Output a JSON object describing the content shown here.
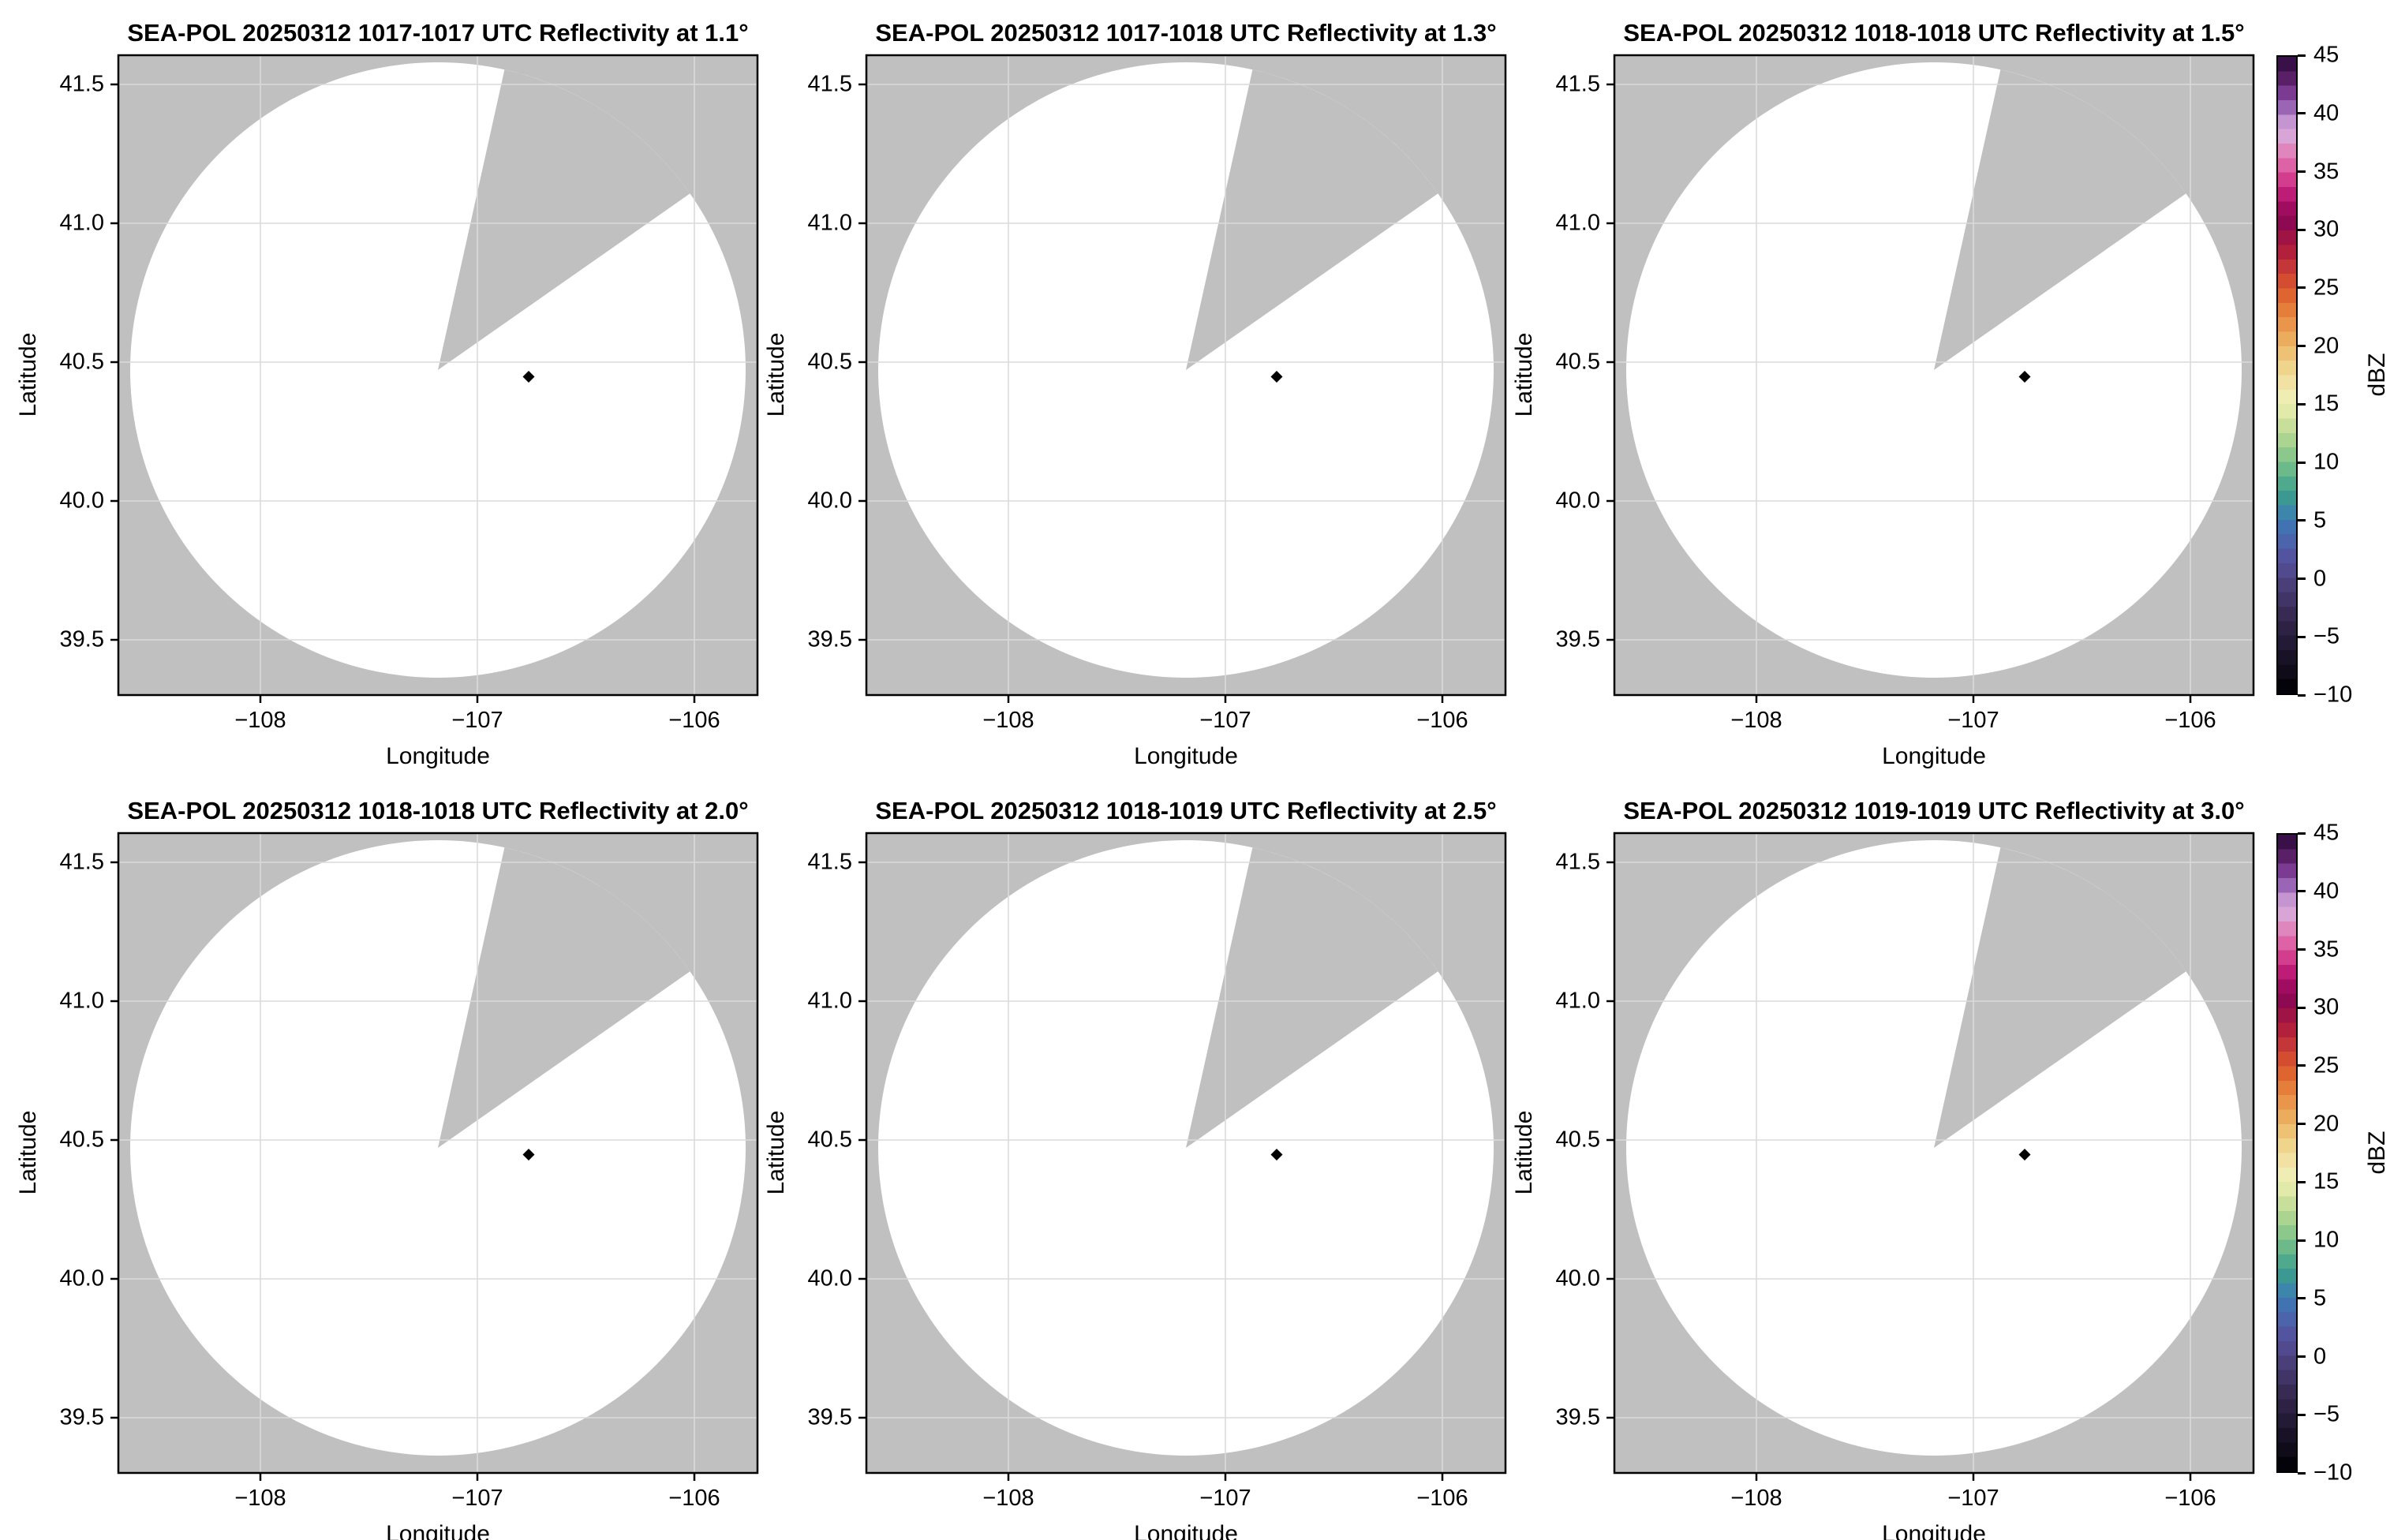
{
  "figure": {
    "xlabel": "Longitude",
    "ylabel": "Latitude",
    "xticks": [
      "−108",
      "−107",
      "−106"
    ],
    "yticks": [
      "41.5",
      "41.0",
      "40.5",
      "40.0",
      "39.5"
    ],
    "background_gray": "#c0c0c0",
    "coverage_fill": "#ffffff",
    "gridline_color": "#dadada"
  },
  "panels": [
    {
      "title": "SEA-POL 20250312 1017-1017 UTC Reflectivity at 1.1°"
    },
    {
      "title": "SEA-POL 20250312 1017-1018 UTC Reflectivity at 1.3°"
    },
    {
      "title": "SEA-POL 20250312 1018-1018 UTC Reflectivity at 1.5°"
    },
    {
      "title": "SEA-POL 20250312 1018-1018 UTC Reflectivity at 2.0°"
    },
    {
      "title": "SEA-POL 20250312 1018-1019 UTC Reflectivity at 2.5°"
    },
    {
      "title": "SEA-POL 20250312 1019-1019 UTC Reflectivity at 3.0°"
    }
  ],
  "colorbar": {
    "label": "dBZ",
    "ticks": [
      "45",
      "40",
      "35",
      "30",
      "25",
      "20",
      "15",
      "10",
      "5",
      "0",
      "−5",
      "−10"
    ],
    "vmin": -10,
    "vmax": 45,
    "colors": [
      "#3a1048",
      "#5a2067",
      "#7b3b93",
      "#9b65b5",
      "#c495d0",
      "#d8a5d6",
      "#df87bd",
      "#dd63a6",
      "#d23d8d",
      "#bd1c77",
      "#a00d60",
      "#8d0a52",
      "#a01345",
      "#b3203c",
      "#c43637",
      "#d44d30",
      "#df6530",
      "#e57e3b",
      "#e9964c",
      "#ebac5e",
      "#edc274",
      "#efd48c",
      "#f1e2a4",
      "#f0edb4",
      "#e2eaaa",
      "#c8df9b",
      "#abd491",
      "#8cc78c",
      "#6cba8a",
      "#4fa98c",
      "#3b9991",
      "#3d86ab",
      "#4173b3",
      "#4b64ab",
      "#52549f",
      "#524a8e",
      "#4b3f79",
      "#413466",
      "#372b54",
      "#2d2244",
      "#231a35",
      "#191226",
      "#100b18",
      "#05030a"
    ]
  },
  "chart_data": [
    {
      "type": "heatmap",
      "title": "SEA-POL 20250312 1017-1017 UTC Reflectivity at 1.1°",
      "field": "reflectivity",
      "elevation_deg": 1.1,
      "time_utc": "1017-1017",
      "date": "20250312",
      "xlabel": "Longitude",
      "ylabel": "Latitude",
      "xlim": [
        -108.67,
        -105.72
      ],
      "ylim": [
        39.3,
        41.61
      ],
      "xticks": [
        -108,
        -107,
        -106
      ],
      "yticks": [
        41.5,
        41.0,
        40.5,
        40.0,
        39.5
      ],
      "radar_center_lonlat": [
        -107.2,
        40.47
      ],
      "coverage_radius_deg_lat": 1.11,
      "no_data_sector_azimuth_deg": [
        12.5,
        55
      ],
      "site_marker_lonlat": [
        -106.77,
        40.45
      ],
      "values_note": "coverage area blank/white: no echoes at or above -10 dBZ",
      "colorbar": {
        "label": "dBZ",
        "min": -10,
        "max": 45,
        "tick_step": 5
      }
    },
    {
      "type": "heatmap",
      "title": "SEA-POL 20250312 1017-1018 UTC Reflectivity at 1.3°",
      "field": "reflectivity",
      "elevation_deg": 1.3,
      "time_utc": "1017-1018",
      "date": "20250312",
      "xlabel": "Longitude",
      "ylabel": "Latitude",
      "xlim": [
        -108.67,
        -105.72
      ],
      "ylim": [
        39.3,
        41.61
      ],
      "xticks": [
        -108,
        -107,
        -106
      ],
      "yticks": [
        41.5,
        41.0,
        40.5,
        40.0,
        39.5
      ],
      "radar_center_lonlat": [
        -107.2,
        40.47
      ],
      "coverage_radius_deg_lat": 1.11,
      "no_data_sector_azimuth_deg": [
        12.5,
        55
      ],
      "site_marker_lonlat": [
        -106.77,
        40.45
      ],
      "values_note": "coverage area blank/white: no echoes at or above -10 dBZ",
      "colorbar": {
        "label": "dBZ",
        "min": -10,
        "max": 45,
        "tick_step": 5
      }
    },
    {
      "type": "heatmap",
      "title": "SEA-POL 20250312 1018-1018 UTC Reflectivity at 1.5°",
      "field": "reflectivity",
      "elevation_deg": 1.5,
      "time_utc": "1018-1018",
      "date": "20250312",
      "xlabel": "Longitude",
      "ylabel": "Latitude",
      "xlim": [
        -108.67,
        -105.72
      ],
      "ylim": [
        39.3,
        41.61
      ],
      "xticks": [
        -108,
        -107,
        -106
      ],
      "yticks": [
        41.5,
        41.0,
        40.5,
        40.0,
        39.5
      ],
      "radar_center_lonlat": [
        -107.2,
        40.47
      ],
      "coverage_radius_deg_lat": 1.11,
      "no_data_sector_azimuth_deg": [
        12.5,
        55
      ],
      "site_marker_lonlat": [
        -106.77,
        40.45
      ],
      "values_note": "coverage area blank/white: no echoes at or above -10 dBZ",
      "colorbar": {
        "label": "dBZ",
        "min": -10,
        "max": 45,
        "tick_step": 5
      }
    },
    {
      "type": "heatmap",
      "title": "SEA-POL 20250312 1018-1018 UTC Reflectivity at 2.0°",
      "field": "reflectivity",
      "elevation_deg": 2.0,
      "time_utc": "1018-1018",
      "date": "20250312",
      "xlabel": "Longitude",
      "ylabel": "Latitude",
      "xlim": [
        -108.67,
        -105.72
      ],
      "ylim": [
        39.3,
        41.61
      ],
      "xticks": [
        -108,
        -107,
        -106
      ],
      "yticks": [
        41.5,
        41.0,
        40.5,
        40.0,
        39.5
      ],
      "radar_center_lonlat": [
        -107.2,
        40.47
      ],
      "coverage_radius_deg_lat": 1.11,
      "no_data_sector_azimuth_deg": [
        12.5,
        55
      ],
      "site_marker_lonlat": [
        -106.77,
        40.45
      ],
      "values_note": "coverage area blank/white: no echoes at or above -10 dBZ",
      "colorbar": {
        "label": "dBZ",
        "min": -10,
        "max": 45,
        "tick_step": 5
      }
    },
    {
      "type": "heatmap",
      "title": "SEA-POL 20250312 1018-1019 UTC Reflectivity at 2.5°",
      "field": "reflectivity",
      "elevation_deg": 2.5,
      "time_utc": "1018-1019",
      "date": "20250312",
      "xlabel": "Longitude",
      "ylabel": "Latitude",
      "xlim": [
        -108.67,
        -105.72
      ],
      "ylim": [
        39.3,
        41.61
      ],
      "xticks": [
        -108,
        -107,
        -106
      ],
      "yticks": [
        41.5,
        41.0,
        40.5,
        40.0,
        39.5
      ],
      "radar_center_lonlat": [
        -107.2,
        40.47
      ],
      "coverage_radius_deg_lat": 1.11,
      "no_data_sector_azimuth_deg": [
        12.5,
        55
      ],
      "site_marker_lonlat": [
        -106.77,
        40.45
      ],
      "values_note": "coverage area blank/white: no echoes at or above -10 dBZ",
      "colorbar": {
        "label": "dBZ",
        "min": -10,
        "max": 45,
        "tick_step": 5
      }
    },
    {
      "type": "heatmap",
      "title": "SEA-POL 20250312 1019-1019 UTC Reflectivity at 3.0°",
      "field": "reflectivity",
      "elevation_deg": 3.0,
      "time_utc": "1019-1019",
      "date": "20250312",
      "xlabel": "Longitude",
      "ylabel": "Latitude",
      "xlim": [
        -108.67,
        -105.72
      ],
      "ylim": [
        39.3,
        41.61
      ],
      "xticks": [
        -108,
        -107,
        -106
      ],
      "yticks": [
        41.5,
        41.0,
        40.5,
        40.0,
        39.5
      ],
      "radar_center_lonlat": [
        -107.2,
        40.47
      ],
      "coverage_radius_deg_lat": 1.11,
      "no_data_sector_azimuth_deg": [
        12.5,
        55
      ],
      "site_marker_lonlat": [
        -106.77,
        40.45
      ],
      "values_note": "coverage area blank/white: no echoes at or above -10 dBZ",
      "colorbar": {
        "label": "dBZ",
        "min": -10,
        "max": 45,
        "tick_step": 5
      }
    }
  ]
}
